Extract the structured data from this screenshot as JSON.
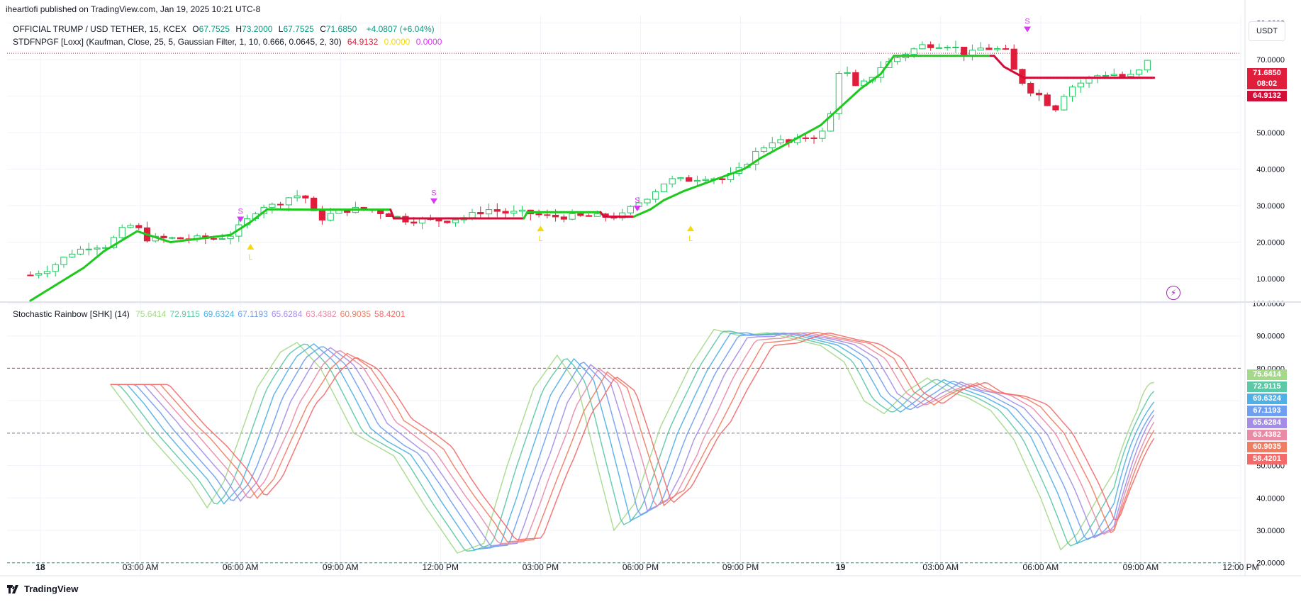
{
  "header": {
    "published": "iheartlofi published on TradingView.com, Jan 19, 2025 10:21 UTC-8",
    "brand": "TradingView"
  },
  "symbol": {
    "name": "OFFICIAL TRUMP / USD TETHER, 15, KCEX",
    "o_label": "O",
    "o": "67.7525",
    "h_label": "H",
    "h": "73.2000",
    "l_label": "L",
    "l": "67.7525",
    "c_label": "C",
    "c": "71.6850",
    "change": "+4.0807 (+6.04%)"
  },
  "indicator1": {
    "name": "STDFNPGF [Loxx] (Kaufman, Close, 25, 5, Gaussian Filter, 1, 10, 0.666, 0.0645, 2, 30)",
    "v1": "64.9132",
    "v2": "0.0000",
    "v3": "0.0000"
  },
  "indicator2": {
    "name": "Stochastic Rainbow [SHK] (14)",
    "values": [
      "75.6414",
      "72.9115",
      "69.6324",
      "67.1193",
      "65.6284",
      "63.4382",
      "60.9035",
      "58.4201"
    ]
  },
  "currency_button": "USDT",
  "price_badges": {
    "last": "71.6850",
    "countdown": "08:02",
    "filter": "64.9132"
  },
  "colors": {
    "up": "#22c55e",
    "down": "#e01e3c",
    "filter_up": "#1ec81e",
    "filter_down": "#d10d38",
    "signal_s": "#d63af0",
    "signal_l": "#f5d90a",
    "grid": "#f0f3fa",
    "rainbow": [
      "#a5d98a",
      "#5cc8a6",
      "#4fb0e6",
      "#6e9ff0",
      "#a38de8",
      "#e98aa6",
      "#f07d62",
      "#f26a6a"
    ]
  },
  "chart_data": [
    {
      "type": "candlestick",
      "title": "OFFICIAL TRUMP / USD TETHER, 15, KCEX",
      "x_ticks": [
        "18",
        "03:00 AM",
        "06:00 AM",
        "09:00 AM",
        "12:00 PM",
        "03:00 PM",
        "06:00 PM",
        "09:00 PM",
        "19",
        "03:00 AM",
        "06:00 AM",
        "09:00 AM",
        "12:00 PM"
      ],
      "y_ticks": [
        "10.0000",
        "20.0000",
        "30.0000",
        "40.0000",
        "50.0000",
        "60.0000",
        "70.0000",
        "80.0000"
      ],
      "ylim": [
        4,
        82
      ],
      "x_range_hours": [
        -1,
        36
      ],
      "close_path": [
        [
          -0.3,
          11
        ],
        [
          0.3,
          13
        ],
        [
          0.9,
          17
        ],
        [
          1.5,
          19
        ],
        [
          2,
          19
        ],
        [
          2.4,
          23
        ],
        [
          2.8,
          25
        ],
        [
          3.2,
          21
        ],
        [
          3.8,
          21
        ],
        [
          4.3,
          21
        ],
        [
          4.8,
          21
        ],
        [
          5.3,
          21
        ],
        [
          5.7,
          22
        ],
        [
          6.2,
          26
        ],
        [
          6.6,
          30
        ],
        [
          7,
          30
        ],
        [
          7.6,
          33
        ],
        [
          8,
          32
        ],
        [
          8.3,
          26
        ],
        [
          8.8,
          28
        ],
        [
          9.3,
          29
        ],
        [
          9.8,
          29
        ],
        [
          10.3,
          28
        ],
        [
          11,
          26
        ],
        [
          11.6,
          26
        ],
        [
          12.2,
          26
        ],
        [
          12.8,
          27
        ],
        [
          13.4,
          29
        ],
        [
          14,
          28
        ],
        [
          14.6,
          28
        ],
        [
          15.2,
          27
        ],
        [
          15.8,
          27
        ],
        [
          16.4,
          27
        ],
        [
          17,
          27
        ],
        [
          17.4,
          27
        ],
        [
          17.8,
          30
        ],
        [
          18.3,
          33
        ],
        [
          18.8,
          37
        ],
        [
          19.4,
          37
        ],
        [
          20,
          38
        ],
        [
          20.5,
          37
        ],
        [
          21,
          40
        ],
        [
          21.5,
          45
        ],
        [
          22,
          48
        ],
        [
          22.5,
          47
        ],
        [
          23,
          49
        ],
        [
          23.4,
          49
        ],
        [
          23.8,
          57
        ],
        [
          24,
          70
        ],
        [
          24.4,
          62
        ],
        [
          24.8,
          64
        ],
        [
          25.2,
          68
        ],
        [
          25.6,
          70
        ],
        [
          26,
          72
        ],
        [
          26.5,
          74
        ],
        [
          26.9,
          74
        ],
        [
          27.3,
          74
        ],
        [
          27.8,
          71
        ],
        [
          28.2,
          73
        ],
        [
          28.6,
          73
        ],
        [
          29,
          72
        ],
        [
          29.2,
          67
        ],
        [
          29.6,
          62
        ],
        [
          30,
          60
        ],
        [
          30.4,
          56
        ],
        [
          30.8,
          62
        ],
        [
          31.3,
          64
        ],
        [
          31.8,
          66
        ],
        [
          32.2,
          66
        ],
        [
          32.6,
          65
        ],
        [
          33,
          67
        ],
        [
          33.4,
          71.69
        ]
      ],
      "filter_steps": [
        [
          -0.3,
          4
        ],
        [
          1.3,
          13
        ],
        [
          1.9,
          17.5
        ],
        [
          2.9,
          23
        ],
        [
          3.9,
          20
        ],
        [
          5.7,
          22
        ],
        [
          6.3,
          25.5
        ],
        [
          6.8,
          29
        ],
        [
          8.2,
          28.9
        ],
        [
          10.5,
          28.9
        ],
        [
          10.6,
          26.5
        ],
        [
          14.5,
          26.5
        ],
        [
          14.6,
          28.2
        ],
        [
          16.8,
          28.2
        ],
        [
          16.9,
          27
        ],
        [
          17.8,
          27
        ],
        [
          18.3,
          29
        ],
        [
          18.7,
          31.5
        ],
        [
          19.3,
          34
        ],
        [
          19.9,
          36
        ],
        [
          20.5,
          38
        ],
        [
          21.1,
          40
        ],
        [
          21.6,
          43
        ],
        [
          22.2,
          46
        ],
        [
          22.8,
          49
        ],
        [
          23.4,
          52
        ],
        [
          24,
          57
        ],
        [
          24.6,
          62
        ],
        [
          25.2,
          66
        ],
        [
          25.6,
          71
        ],
        [
          28.6,
          71
        ],
        [
          28.9,
          68
        ],
        [
          29.5,
          65
        ],
        [
          33.4,
          65
        ]
      ],
      "filter_colors": "green until 10.5h, red 10.6h-14.5h, green 14.6h-16.8h, red 16.9h-17.8h, green 17.8h-28.6h, red after 28.6h",
      "signals": [
        {
          "label": "S",
          "x": 6.0,
          "y": 27
        },
        {
          "label": "L",
          "x": 6.3,
          "y": 18
        },
        {
          "label": "S",
          "x": 11.8,
          "y": 32
        },
        {
          "label": "L",
          "x": 15.0,
          "y": 23
        },
        {
          "label": "S",
          "x": 17.9,
          "y": 30
        },
        {
          "label": "L",
          "x": 19.5,
          "y": 23
        },
        {
          "label": "S",
          "x": 29.6,
          "y": 79
        }
      ],
      "last_price": 71.685,
      "filter_value": 64.9132
    },
    {
      "type": "line",
      "title": "Stochastic Rainbow [SHK] (14)",
      "y_ticks": [
        "20.0000",
        "30.0000",
        "40.0000",
        "50.0000",
        "60.0000",
        "70.0000",
        "80.0000",
        "90.0000",
        "100.0000"
      ],
      "ylim": [
        16,
        100
      ],
      "levels": [
        20,
        60,
        80
      ],
      "base_path": [
        [
          2.1,
          75
        ],
        [
          3.2,
          60
        ],
        [
          4.5,
          45
        ],
        [
          5.0,
          37
        ],
        [
          5.5,
          45
        ],
        [
          6.5,
          74
        ],
        [
          7.2,
          85
        ],
        [
          7.7,
          88
        ],
        [
          8.4,
          80
        ],
        [
          9.4,
          60
        ],
        [
          10.6,
          53
        ],
        [
          11.5,
          38
        ],
        [
          12.5,
          23
        ],
        [
          13.3,
          26
        ],
        [
          14.0,
          50
        ],
        [
          14.8,
          74
        ],
        [
          15.5,
          84
        ],
        [
          16.1,
          75
        ],
        [
          16.7,
          50
        ],
        [
          17.2,
          30
        ],
        [
          17.8,
          38
        ],
        [
          18.6,
          62
        ],
        [
          19.5,
          81
        ],
        [
          20.2,
          92
        ],
        [
          21.0,
          90
        ],
        [
          21.8,
          91
        ],
        [
          22.6,
          89
        ],
        [
          23.4,
          87
        ],
        [
          24.1,
          82
        ],
        [
          24.7,
          70
        ],
        [
          25.3,
          66
        ],
        [
          26.0,
          73
        ],
        [
          26.6,
          77
        ],
        [
          27.2,
          73
        ],
        [
          27.8,
          71
        ],
        [
          28.5,
          67
        ],
        [
          29.2,
          58
        ],
        [
          30.0,
          40
        ],
        [
          30.6,
          24
        ],
        [
          31.1,
          29
        ],
        [
          31.6,
          38
        ],
        [
          32.2,
          48
        ],
        [
          32.9,
          55
        ],
        [
          33.4,
          78
        ]
      ],
      "lag_hours_per_line": 0.25,
      "series": [
        {
          "name": "1",
          "last": 75.6414
        },
        {
          "name": "2",
          "last": 72.9115
        },
        {
          "name": "3",
          "last": 69.6324
        },
        {
          "name": "4",
          "last": 67.1193
        },
        {
          "name": "5",
          "last": 65.6284
        },
        {
          "name": "6",
          "last": 63.4382
        },
        {
          "name": "7",
          "last": 60.9035
        },
        {
          "name": "8",
          "last": 58.4201
        }
      ]
    }
  ]
}
